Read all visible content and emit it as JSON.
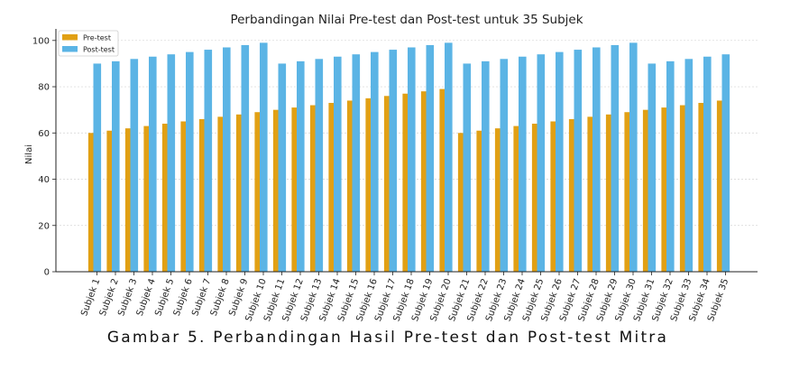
{
  "caption": "Gambar 5. Perbandingan Hasil Pre-test dan Post-test Mitra",
  "chart_data": {
    "type": "bar",
    "title": "Perbandingan Nilai Pre-test dan Post-test untuk 35 Subjek",
    "xlabel": "",
    "ylabel": "Nilai",
    "ylim": [
      0,
      105
    ],
    "yticks": [
      0,
      20,
      40,
      60,
      80,
      100
    ],
    "grid": true,
    "legend_position": "top-left",
    "categories": [
      "Subjek 1",
      "Subjek 2",
      "Subjek 3",
      "Subjek 4",
      "Subjek 5",
      "Subjek 6",
      "Subjek 7",
      "Subjek 8",
      "Subjek 9",
      "Subjek 10",
      "Subjek 11",
      "Subjek 12",
      "Subjek 13",
      "Subjek 14",
      "Subjek 15",
      "Subjek 16",
      "Subjek 17",
      "Subjek 18",
      "Subjek 19",
      "Subjek 20",
      "Subjek 21",
      "Subjek 22",
      "Subjek 23",
      "Subjek 24",
      "Subjek 25",
      "Subjek 26",
      "Subjek 27",
      "Subjek 28",
      "Subjek 29",
      "Subjek 30",
      "Subjek 31",
      "Subjek 32",
      "Subjek 33",
      "Subjek 34",
      "Subjek 35"
    ],
    "series": [
      {
        "name": "Pre-test",
        "color": "#e1a014",
        "values": [
          60,
          61,
          62,
          63,
          64,
          65,
          66,
          67,
          68,
          69,
          70,
          71,
          72,
          73,
          74,
          75,
          76,
          77,
          78,
          79,
          60,
          61,
          62,
          63,
          64,
          65,
          66,
          67,
          68,
          69,
          70,
          71,
          72,
          73,
          74
        ]
      },
      {
        "name": "Post-test",
        "color": "#5bb4e5",
        "values": [
          90,
          91,
          92,
          93,
          94,
          95,
          96,
          97,
          98,
          99,
          90,
          91,
          92,
          93,
          94,
          95,
          96,
          97,
          98,
          99,
          90,
          91,
          92,
          93,
          94,
          95,
          96,
          97,
          98,
          99,
          90,
          91,
          92,
          93,
          94
        ]
      }
    ]
  }
}
